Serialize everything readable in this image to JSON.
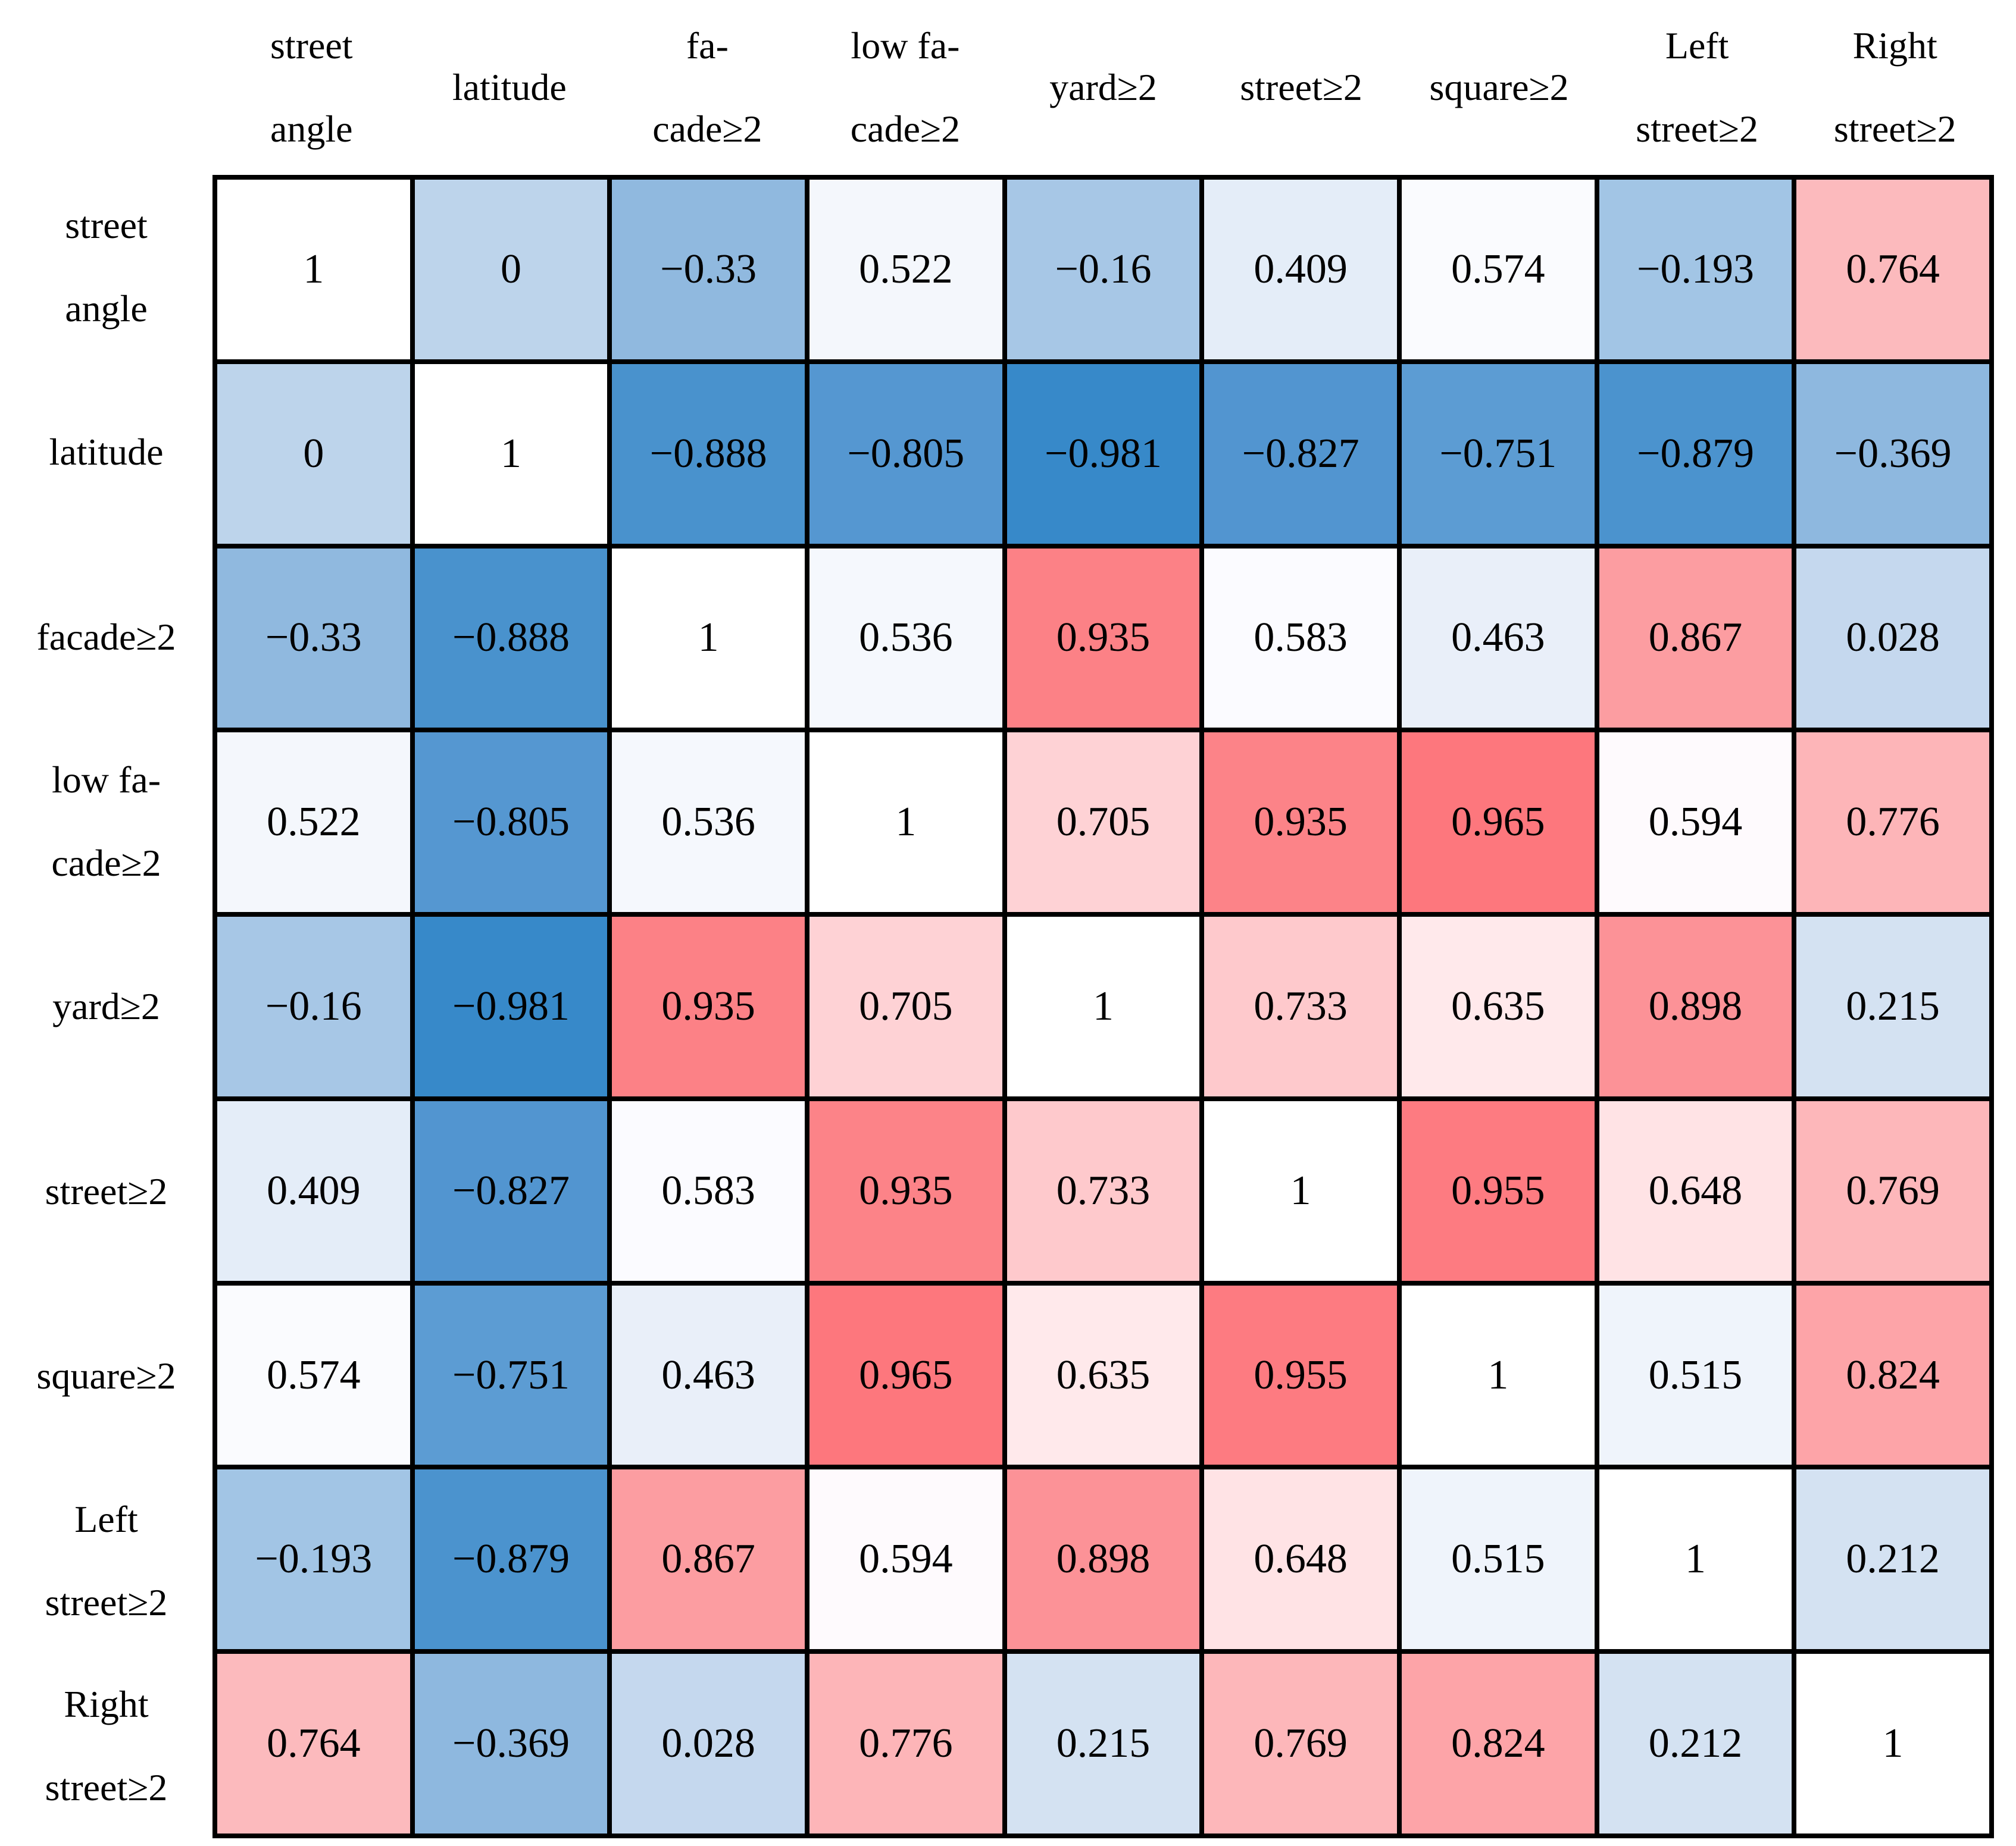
{
  "figure": {
    "kind": "correlation-matrix"
  },
  "chart_data": {
    "type": "heatmap",
    "title": "",
    "variables": [
      "street angle",
      "latitude",
      "facade≥2",
      "low facade≥2",
      "yard≥2",
      "street≥2",
      "square≥2",
      "Left street≥2",
      "Right street≥2"
    ],
    "col_headers": [
      {
        "name": "street-angle",
        "lines": [
          "street",
          "angle"
        ]
      },
      {
        "name": "latitude",
        "lines": [
          "latitude"
        ]
      },
      {
        "name": "facade-ge-2",
        "lines": [
          "fa-",
          "cade≥2"
        ]
      },
      {
        "name": "low-facade-ge-2",
        "lines": [
          "low fa-",
          "cade≥2"
        ]
      },
      {
        "name": "yard-ge-2",
        "lines": [
          "yard≥2"
        ]
      },
      {
        "name": "street-ge-2",
        "lines": [
          "street≥2"
        ]
      },
      {
        "name": "square-ge-2",
        "lines": [
          "square≥2"
        ]
      },
      {
        "name": "left-street-ge-2",
        "lines": [
          "Left",
          "street≥2"
        ]
      },
      {
        "name": "right-street-ge-2",
        "lines": [
          "Right",
          "street≥2"
        ]
      }
    ],
    "row_headers": [
      {
        "name": "street-angle",
        "lines": [
          "street",
          "angle"
        ]
      },
      {
        "name": "latitude",
        "lines": [
          "latitude"
        ]
      },
      {
        "name": "facade-ge-2",
        "lines": [
          "facade≥2"
        ]
      },
      {
        "name": "low-facade-ge-2",
        "lines": [
          "low fa-",
          "cade≥2"
        ]
      },
      {
        "name": "yard-ge-2",
        "lines": [
          "yard≥2"
        ]
      },
      {
        "name": "street-ge-2",
        "lines": [
          "street≥2"
        ]
      },
      {
        "name": "square-ge-2",
        "lines": [
          "square≥2"
        ]
      },
      {
        "name": "left-street-ge-2",
        "lines": [
          "Left",
          "street≥2"
        ]
      },
      {
        "name": "right-street-ge-2",
        "lines": [
          "Right",
          "street≥2"
        ]
      }
    ],
    "values": [
      [
        "1",
        "0",
        "−0.33",
        "0.522",
        "−0.16",
        "0.409",
        "0.574",
        "−0.193",
        "0.764"
      ],
      [
        "0",
        "1",
        "−0.888",
        "−0.805",
        "−0.981",
        "−0.827",
        "−0.751",
        "−0.879",
        "−0.369"
      ],
      [
        "−0.33",
        "−0.888",
        "1",
        "0.536",
        "0.935",
        "0.583",
        "0.463",
        "0.867",
        "0.028"
      ],
      [
        "0.522",
        "−0.805",
        "0.536",
        "1",
        "0.705",
        "0.935",
        "0.965",
        "0.594",
        "0.776"
      ],
      [
        "−0.16",
        "−0.981",
        "0.935",
        "0.705",
        "1",
        "0.733",
        "0.635",
        "0.898",
        "0.215"
      ],
      [
        "0.409",
        "−0.827",
        "0.583",
        "0.935",
        "0.733",
        "1",
        "0.955",
        "0.648",
        "0.769"
      ],
      [
        "0.574",
        "−0.751",
        "0.463",
        "0.965",
        "0.635",
        "0.955",
        "1",
        "0.515",
        "0.824"
      ],
      [
        "−0.193",
        "−0.879",
        "0.867",
        "0.594",
        "0.898",
        "0.648",
        "0.515",
        "1",
        "0.212"
      ],
      [
        "0.764",
        "−0.369",
        "0.028",
        "0.776",
        "0.215",
        "0.769",
        "0.824",
        "0.212",
        "1"
      ]
    ],
    "cell_colors": [
      [
        "#FFFFFF",
        "#BDD4EB",
        "#90B9DF",
        "#F4F7FC",
        "#A7C7E6",
        "#E4EDF8",
        "#FAFBFE",
        "#A2C5E5",
        "#FCBABD"
      ],
      [
        "#BDD4EB",
        "#FFFFFF",
        "#4992CD",
        "#5597D1",
        "#3789C9",
        "#5295D0",
        "#5C9CD3",
        "#4B93CE",
        "#8EB8DF"
      ],
      [
        "#90B9DF",
        "#4992CD",
        "#FFFFFF",
        "#F5F8FD",
        "#FC8186",
        "#FBFBFF",
        "#E9EFF9",
        "#FC9DA1",
        "#C5D8EE"
      ],
      [
        "#F4F7FC",
        "#5597D1",
        "#F5F8FD",
        "#FFFFFF",
        "#FED2D5",
        "#FC8388",
        "#FD777D",
        "#FEFAFD",
        "#FDB5B8"
      ],
      [
        "#A7C7E6",
        "#3789C9",
        "#FC8186",
        "#FED2D5",
        "#FFFFFF",
        "#FEC9CC",
        "#FFE9EB",
        "#FC9297",
        "#D4E2F2"
      ],
      [
        "#E4EDF8",
        "#5295D0",
        "#FBFBFF",
        "#FC8388",
        "#FEC9CC",
        "#FFFFFF",
        "#FD7B81",
        "#FFE3E5",
        "#FDB7BA"
      ],
      [
        "#FAFBFE",
        "#5C9CD3",
        "#E9EFF9",
        "#FD777D",
        "#FFE9EB",
        "#FD7B81",
        "#FFFFFF",
        "#EFF4FB",
        "#FDA4A8"
      ],
      [
        "#A2C5E5",
        "#4B93CE",
        "#FC9DA1",
        "#FEFAFD",
        "#FC9297",
        "#FFE3E5",
        "#EFF4FB",
        "#FFFFFF",
        "#D4E2F2"
      ],
      [
        "#FCBABD",
        "#8EB8DF",
        "#C5D8EE",
        "#FDB5B8",
        "#D4E2F2",
        "#FDB7BA",
        "#FDA4A8",
        "#D4E2F2",
        "#FFFFFF"
      ]
    ],
    "value_range": [
      -1,
      1
    ],
    "color_scale": {
      "strong_negative": "#3789C9",
      "strong_positive": "#FD777D",
      "diagonal": "#FFFFFF"
    },
    "grid_line_color": "#000000",
    "background": "#FFFFFF",
    "legend": "none"
  }
}
